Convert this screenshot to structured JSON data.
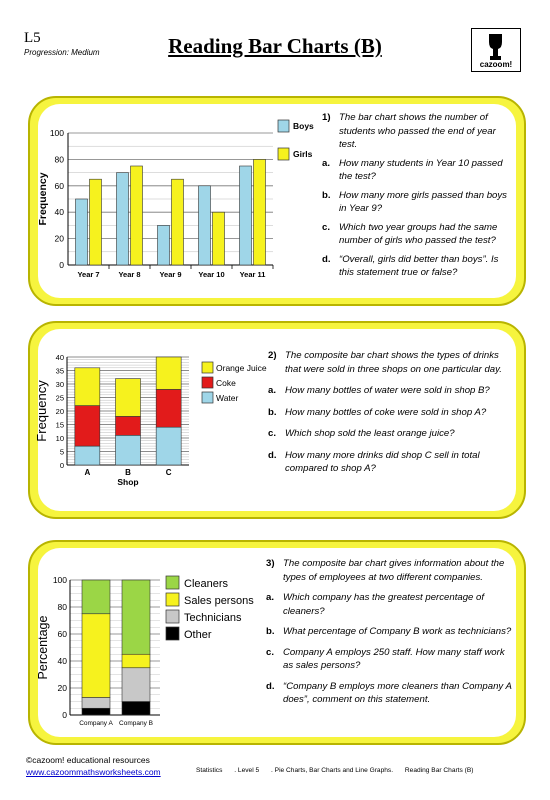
{
  "header": {
    "level": "L5",
    "progression": "Progression: Medium",
    "title": "Reading Bar Charts (B)",
    "logo_text": "cazoom!"
  },
  "questions": [
    {
      "number": "1)",
      "intro": "The bar chart shows the number of students who passed the end of year test.",
      "parts": [
        {
          "letter": "a.",
          "text": "How many students in Year 10 passed the test?"
        },
        {
          "letter": "b.",
          "text": "How many more girls passed than boys in Year 9?"
        },
        {
          "letter": "c.",
          "text": "Which two year groups had the same number of girls who passed the test?"
        },
        {
          "letter": "d.",
          "text": "“Overall, girls did better than boys”. Is this statement true or false?"
        }
      ]
    },
    {
      "number": "2)",
      "intro": "The composite bar chart shows the types of drinks that were sold in three shops on one particular day.",
      "parts": [
        {
          "letter": "a.",
          "text": "How many bottles of water were sold in shop B?"
        },
        {
          "letter": "b.",
          "text": "How many bottles of coke were sold in shop A?"
        },
        {
          "letter": "c.",
          "text": "Which shop sold the least orange juice?"
        },
        {
          "letter": "d.",
          "text": "How many more drinks did shop C sell in total compared to shop A?"
        }
      ]
    },
    {
      "number": "3)",
      "intro": "The composite bar chart gives information about the types of employees at two different companies.",
      "parts": [
        {
          "letter": "a.",
          "text": "Which company has the greatest percentage of cleaners?"
        },
        {
          "letter": "b.",
          "text": "What percentage of Company B work as technicians?"
        },
        {
          "letter": "c.",
          "text": "Company A employs 250 staff. How many staff work as sales persons?"
        },
        {
          "letter": "d.",
          "text": "“Company B employs more cleaners than Company A does”, comment on this statement."
        }
      ]
    }
  ],
  "chart_data": [
    {
      "type": "bar",
      "title": "",
      "xlabel": "",
      "ylabel": "Frequency",
      "ylim": [
        0,
        100
      ],
      "yticks": [
        0,
        20,
        40,
        60,
        80,
        100
      ],
      "grid": true,
      "legend": "right",
      "categories": [
        "Year 7",
        "Year 8",
        "Year 9",
        "Year 10",
        "Year 11"
      ],
      "series": [
        {
          "name": "Boys",
          "color": "#9fd6e8",
          "values": [
            50,
            70,
            30,
            60,
            75
          ]
        },
        {
          "name": "Girls",
          "color": "#f6f21e",
          "values": [
            65,
            75,
            65,
            40,
            80
          ]
        }
      ]
    },
    {
      "type": "bar",
      "stacked": true,
      "title": "",
      "xlabel": "Shop",
      "ylabel": "Frequency",
      "ylim": [
        0,
        40
      ],
      "yticks": [
        0,
        5,
        10,
        15,
        20,
        25,
        30,
        35,
        40
      ],
      "grid": true,
      "legend": "right",
      "categories": [
        "A",
        "B",
        "C"
      ],
      "series": [
        {
          "name": "Water",
          "color": "#9fd6e8",
          "values": [
            7,
            11,
            14
          ]
        },
        {
          "name": "Coke",
          "color": "#e21b1b",
          "values": [
            15,
            7,
            14
          ]
        },
        {
          "name": "Orange Juice",
          "color": "#f6f21e",
          "values": [
            14,
            14,
            12
          ]
        }
      ],
      "legend_order": [
        "Orange Juice",
        "Coke",
        "Water"
      ]
    },
    {
      "type": "bar",
      "stacked": true,
      "title": "",
      "xlabel": "",
      "ylabel": "Percentage",
      "ylim": [
        0,
        100
      ],
      "yticks": [
        0,
        20,
        40,
        60,
        80,
        100
      ],
      "grid": true,
      "legend": "right",
      "categories": [
        "Company A",
        "Company B"
      ],
      "series": [
        {
          "name": "Other",
          "color": "#000000",
          "values": [
            5,
            10
          ]
        },
        {
          "name": "Technicians",
          "color": "#c8c8c8",
          "values": [
            8,
            25
          ]
        },
        {
          "name": "Sales persons",
          "color": "#f6f21e",
          "values": [
            62,
            10
          ]
        },
        {
          "name": "Cleaners",
          "color": "#9bd646",
          "values": [
            25,
            55
          ]
        }
      ],
      "legend_order": [
        "Cleaners",
        "Sales persons",
        "Technicians",
        "Other"
      ]
    }
  ],
  "footer": {
    "copyright": "©cazoom! educational resources",
    "website": "www.cazoommathsworksheets.com",
    "meta": [
      "Statistics",
      ". Level 5",
      ". Pie Charts, Bar Charts and Line Graphs.",
      "Reading Bar Charts (B)"
    ]
  }
}
